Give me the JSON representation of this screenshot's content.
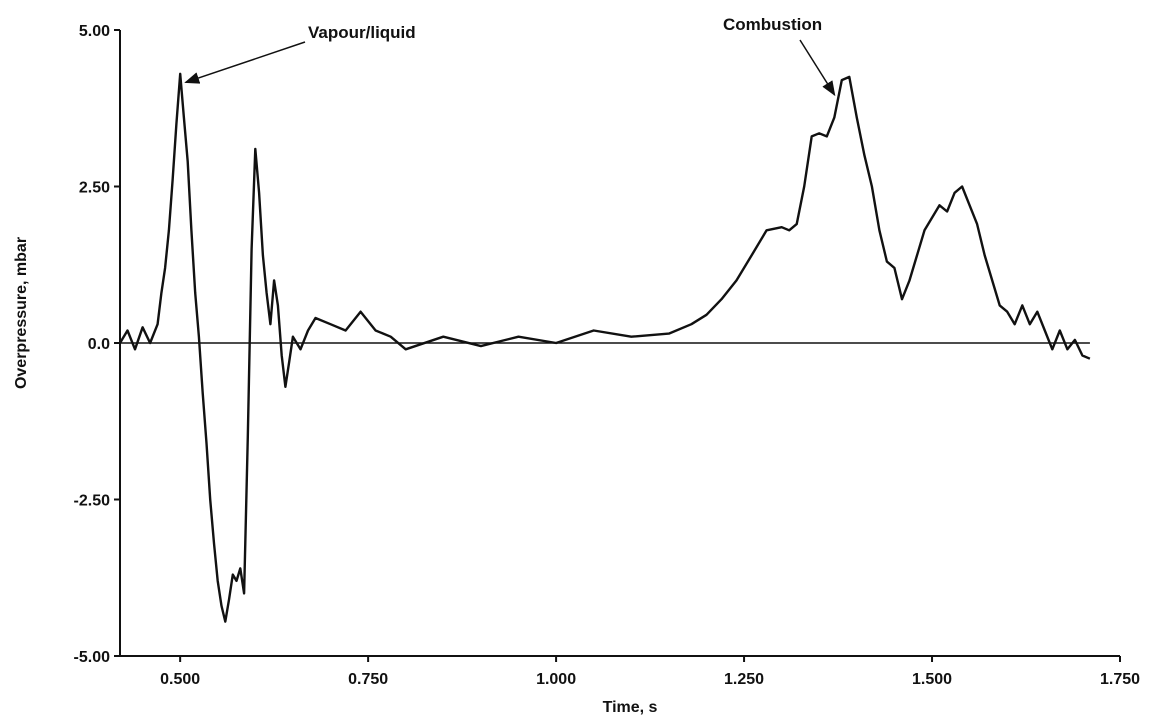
{
  "chart_data": {
    "type": "line",
    "title": "",
    "xlabel": "Time, s",
    "ylabel": "Overpressure, mbar",
    "xlim": [
      0.42,
      1.75
    ],
    "ylim": [
      -5.0,
      5.0
    ],
    "x_ticks": [
      0.5,
      0.75,
      1.0,
      1.25,
      1.5,
      1.75
    ],
    "x_tick_labels": [
      "0.500",
      "0.750",
      "1.000",
      "1.250",
      "1.500",
      "1.750"
    ],
    "y_ticks": [
      5.0,
      2.5,
      0.0,
      -2.5,
      -5.0
    ],
    "y_tick_labels": [
      "5.00",
      "2.50",
      "0.0",
      "-2.50",
      "-5.00"
    ],
    "grid": false,
    "legend": "none",
    "zero_line": true,
    "series": [
      {
        "color": "#111111",
        "x": [
          0.42,
          0.43,
          0.44,
          0.45,
          0.46,
          0.47,
          0.475,
          0.48,
          0.485,
          0.49,
          0.495,
          0.5,
          0.505,
          0.51,
          0.515,
          0.52,
          0.525,
          0.53,
          0.535,
          0.54,
          0.545,
          0.55,
          0.555,
          0.56,
          0.565,
          0.57,
          0.575,
          0.58,
          0.585,
          0.59,
          0.595,
          0.6,
          0.605,
          0.61,
          0.615,
          0.62,
          0.625,
          0.63,
          0.635,
          0.64,
          0.645,
          0.65,
          0.66,
          0.67,
          0.68,
          0.7,
          0.72,
          0.74,
          0.76,
          0.78,
          0.8,
          0.85,
          0.9,
          0.95,
          1.0,
          1.05,
          1.1,
          1.15,
          1.18,
          1.2,
          1.22,
          1.24,
          1.26,
          1.28,
          1.3,
          1.31,
          1.32,
          1.33,
          1.34,
          1.35,
          1.36,
          1.37,
          1.38,
          1.39,
          1.4,
          1.41,
          1.42,
          1.43,
          1.44,
          1.45,
          1.46,
          1.47,
          1.48,
          1.49,
          1.5,
          1.51,
          1.52,
          1.53,
          1.54,
          1.55,
          1.56,
          1.57,
          1.58,
          1.59,
          1.6,
          1.61,
          1.62,
          1.63,
          1.64,
          1.65,
          1.66,
          1.67,
          1.68,
          1.69,
          1.7,
          1.71
        ],
        "y": [
          0.0,
          0.2,
          -0.1,
          0.25,
          0.0,
          0.3,
          0.8,
          1.2,
          1.8,
          2.6,
          3.5,
          4.3,
          3.6,
          2.9,
          1.8,
          0.8,
          0.1,
          -0.8,
          -1.6,
          -2.5,
          -3.2,
          -3.8,
          -4.2,
          -4.45,
          -4.1,
          -3.7,
          -3.8,
          -3.6,
          -4.0,
          -1.5,
          1.5,
          3.1,
          2.4,
          1.4,
          0.8,
          0.3,
          1.0,
          0.6,
          -0.2,
          -0.7,
          -0.3,
          0.1,
          -0.1,
          0.2,
          0.4,
          0.3,
          0.2,
          0.5,
          0.2,
          0.1,
          -0.1,
          0.1,
          -0.05,
          0.1,
          0.0,
          0.2,
          0.1,
          0.15,
          0.3,
          0.45,
          0.7,
          1.0,
          1.4,
          1.8,
          1.85,
          1.8,
          1.9,
          2.5,
          3.3,
          3.35,
          3.3,
          3.6,
          4.2,
          4.25,
          3.6,
          3.0,
          2.5,
          1.8,
          1.3,
          1.2,
          0.7,
          1.0,
          1.4,
          1.8,
          2.0,
          2.2,
          2.1,
          2.4,
          2.5,
          2.2,
          1.9,
          1.4,
          1.0,
          0.6,
          0.5,
          0.3,
          0.6,
          0.3,
          0.5,
          0.2,
          -0.1,
          0.2,
          -0.1,
          0.05,
          -0.2,
          -0.25
        ]
      }
    ],
    "annotations": [
      {
        "text": "Vapour/liquid",
        "target_x": 0.502,
        "target_y": 4.1
      },
      {
        "text": "Combustion",
        "target_x": 1.365,
        "target_y": 3.9
      }
    ]
  }
}
